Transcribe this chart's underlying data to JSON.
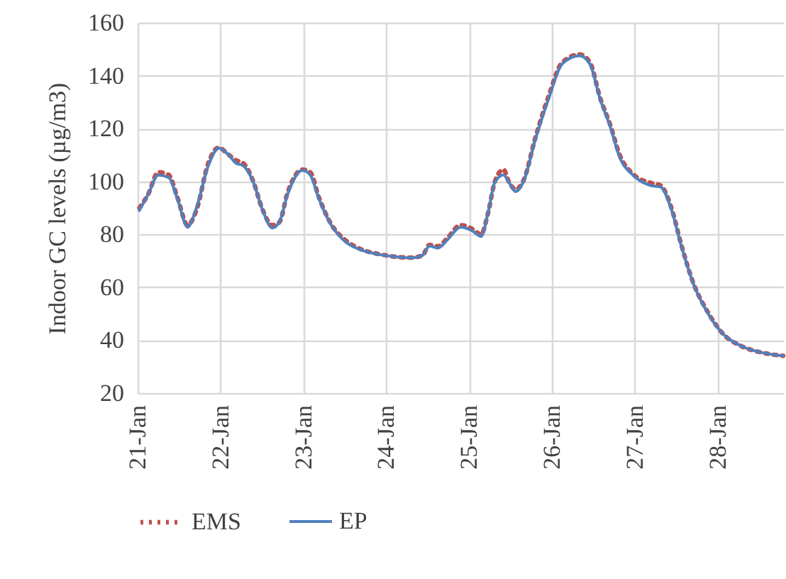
{
  "chart_data": {
    "type": "line",
    "ylabel": "Indoor GC levels (µg/m3)",
    "xlim": [
      "--01-21",
      "--01-28T19:00"
    ],
    "xticks": [
      {
        "value": "--01-21",
        "label": "21-Jan"
      },
      {
        "value": "--01-22",
        "label": "22-Jan"
      },
      {
        "value": "--01-23",
        "label": "23-Jan"
      },
      {
        "value": "--01-24",
        "label": "24-Jan"
      },
      {
        "value": "--01-25",
        "label": "25-Jan"
      },
      {
        "value": "--01-26",
        "label": "26-Jan"
      },
      {
        "value": "--01-27",
        "label": "27-Jan"
      },
      {
        "value": "--01-28",
        "label": "28-Jan"
      }
    ],
    "ylim": [
      20,
      160
    ],
    "yticks": [
      20,
      40,
      60,
      80,
      100,
      120,
      140,
      160
    ],
    "grid": true,
    "legend": "bottom",
    "marker": "none",
    "x": [
      "--01-21T00:30",
      "--01-21T03:00",
      "--01-21T06:00",
      "--01-21T09:00",
      "--01-21T11:30",
      "--01-21T14:30",
      "--01-21T17:00",
      "--01-21T20:30",
      "--01-21T23:30",
      "--01-22T02:00",
      "--01-22T04:30",
      "--01-22T06:30",
      "--01-22T09:30",
      "--01-22T12:00",
      "--01-22T15:00",
      "--01-22T17:00",
      "--01-22T19:30",
      "--01-22T23:45",
      "--01-23T02:00",
      "--01-23T04:30",
      "--01-23T08:00",
      "--01-23T12:00",
      "--01-23T16:30",
      "--01-23T22:00",
      "--01-24T03:00",
      "--01-24T07:00",
      "--01-24T10:30",
      "--01-24T12:30",
      "--01-24T15:00",
      "--01-24T18:00",
      "--01-24T21:30",
      "--01-25T01:00",
      "--01-25T03:30",
      "--01-25T05:30",
      "--01-25T07:30",
      "--01-25T10:00",
      "--01-25T11:30",
      "--01-25T13:30",
      "--01-25T16:00",
      "--01-25T19:00",
      "--01-25T23:00",
      "--01-26T03:00",
      "--01-26T08:00",
      "--01-26T11:00",
      "--01-26T14:00",
      "--01-26T17:00",
      "--01-26T19:30",
      "--01-26T23:45",
      "--01-27T04:30",
      "--01-27T07:30",
      "--01-27T10:30",
      "--01-27T13:30",
      "--01-27T17:00",
      "--01-27T21:00",
      "--01-28T01:30",
      "--01-28T07:00",
      "--01-28T12:30",
      "--01-28T19:00"
    ],
    "series": [
      {
        "name": "EMS",
        "color": "#c0504d",
        "line_style": "dotted",
        "values": [
          90,
          95,
          103.5,
          102.5,
          94,
          83.5,
          89,
          107,
          112.8,
          110.5,
          108,
          107,
          100,
          90,
          83.5,
          84.5,
          96,
          104.5,
          103.5,
          94,
          84,
          78,
          74.5,
          72.5,
          71.5,
          71.2,
          72,
          76,
          75.5,
          79,
          83.5,
          82,
          80,
          88,
          100,
          104.5,
          100,
          97,
          101,
          115.5,
          132,
          145,
          148,
          145,
          131.5,
          121,
          110.5,
          102.5,
          99.5,
          98.5,
          90.5,
          76,
          61.5,
          51,
          42.5,
          37.7,
          35.4,
          34.1
        ]
      },
      {
        "name": "EP",
        "color": "#4f81bd",
        "line_style": "solid",
        "values": [
          89,
          95,
          102.4,
          101.5,
          93.5,
          82.7,
          89.9,
          106,
          112.6,
          110.5,
          106.9,
          106,
          99.8,
          89.9,
          82.4,
          84.5,
          95.3,
          104.2,
          102.4,
          93.5,
          83.7,
          77.4,
          74.2,
          72.4,
          71.5,
          71.1,
          72,
          75.6,
          74.8,
          78.3,
          82.7,
          81.3,
          79.2,
          88.1,
          99.8,
          102.5,
          99.8,
          96.2,
          100.6,
          114.9,
          131,
          144.4,
          147.5,
          144.4,
          131,
          120.3,
          109.6,
          102.1,
          98.5,
          97.9,
          89.9,
          75.6,
          61.3,
          50.6,
          42.5,
          37.7,
          35.4,
          34.1
        ]
      }
    ]
  }
}
